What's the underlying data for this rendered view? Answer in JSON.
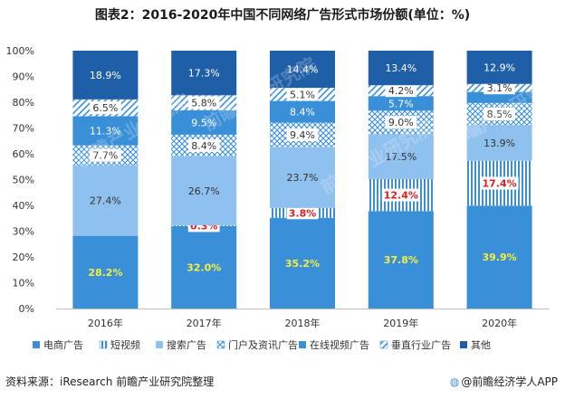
{
  "title": "图表2：2016-2020年中国不同网络广告形式市场份额(单位：%)",
  "footer": {
    "source": "资料来源：iResearch 前瞻产业研究院整理",
    "brand": "@前瞻经济学人APP"
  },
  "watermark": "前瞻产业研究院",
  "colors": {
    "ecommerce": "#3a8fd9",
    "short_video": "#3a8fd9",
    "search": "#8fc1ef",
    "portal": "#3a8fd9",
    "online_video": "#3a8fd9",
    "vertical": "#3a8fd9",
    "other": "#1f5fa8"
  },
  "chart_data": {
    "type": "bar",
    "stacked": true,
    "title": "2016-2020年中国不同网络广告形式市场份额(单位：%)",
    "categories": [
      "2016年",
      "2017年",
      "2018年",
      "2019年",
      "2020年"
    ],
    "ylim": [
      0,
      100
    ],
    "yticks": [
      "0%",
      "10%",
      "20%",
      "30%",
      "40%",
      "50%",
      "60%",
      "70%",
      "80%",
      "90%",
      "100%"
    ],
    "legend_position": "bottom",
    "series": [
      {
        "name": "电商广告",
        "values": [
          28.2,
          32.0,
          35.2,
          37.8,
          39.9
        ],
        "labels": [
          "28.2%",
          "32.0%",
          "35.2%",
          "37.8%",
          "39.9%"
        ]
      },
      {
        "name": "短视频",
        "values": [
          0,
          0.3,
          3.8,
          12.4,
          17.4
        ],
        "labels": [
          "",
          "0.3%",
          "3.8%",
          "12.4%",
          "17.4%"
        ]
      },
      {
        "name": "搜索广告",
        "values": [
          27.4,
          26.7,
          23.7,
          17.5,
          13.9
        ],
        "labels": [
          "27.4%",
          "26.7%",
          "23.7%",
          "17.5%",
          "13.9%"
        ]
      },
      {
        "name": "门户及资讯广告",
        "values": [
          7.7,
          8.4,
          9.4,
          9.0,
          8.5
        ],
        "labels": [
          "7.7%",
          "8.4%",
          "9.4%",
          "9.0%",
          "8.5%"
        ]
      },
      {
        "name": "在线视频广告",
        "values": [
          11.3,
          9.5,
          8.4,
          5.7,
          4.3
        ],
        "labels": [
          "11.3%",
          "9.5%",
          "8.4%",
          "5.7%",
          ""
        ]
      },
      {
        "name": "垂直行业广告",
        "values": [
          6.5,
          5.8,
          5.1,
          4.2,
          3.1
        ],
        "labels": [
          "6.5%",
          "5.8%",
          "5.1%",
          "4.2%",
          "3.1%"
        ]
      },
      {
        "name": "其他",
        "values": [
          18.9,
          17.3,
          14.4,
          13.4,
          12.9
        ],
        "labels": [
          "18.9%",
          "17.3%",
          "14.4%",
          "13.4%",
          "12.9%"
        ]
      }
    ]
  }
}
